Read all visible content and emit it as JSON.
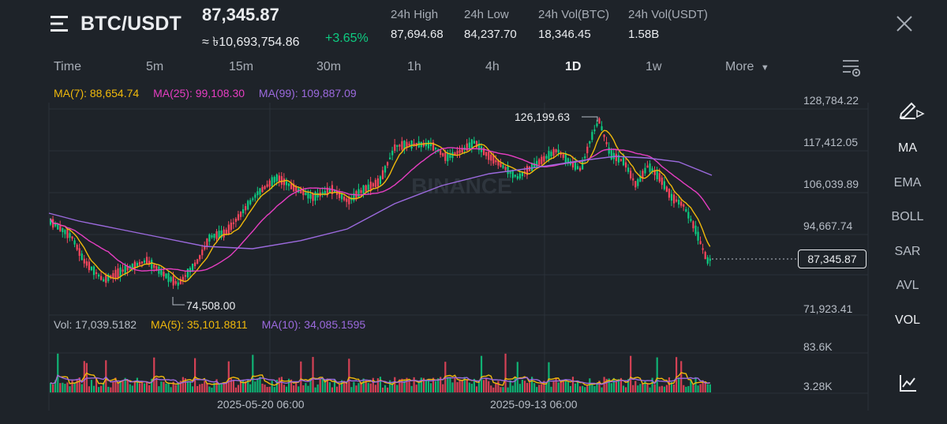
{
  "header": {
    "pair": "BTC/USDT",
    "last_price": "87,345.87",
    "local_price": "≈ ৳10,693,754.86",
    "change": "+3.65%",
    "stats": [
      {
        "label": "24h High",
        "value": "87,694.68"
      },
      {
        "label": "24h Low",
        "value": "84,237.70"
      },
      {
        "label": "24h Vol(BTC)",
        "value": "18,346.45"
      },
      {
        "label": "24h Vol(USDT)",
        "value": "1.58B"
      }
    ]
  },
  "tabs": [
    "Time",
    "5m",
    "15m",
    "30m",
    "1h",
    "4h",
    "1D",
    "1w",
    "More"
  ],
  "active_tab": "1D",
  "ma_legend": {
    "ma7": "MA(7): 88,654.74",
    "ma25": "MA(25): 99,108.30",
    "ma99": "MA(99): 109,887.09"
  },
  "vol_legend": {
    "vol": "Vol: 17,039.5182",
    "ma5": "MA(5): 35,101.8811",
    "ma10": "MA(10): 34,085.1595"
  },
  "price_axis": [
    "128,784.22",
    "117,412.05",
    "106,039.89",
    "94,667.74",
    "71,923.41"
  ],
  "volume_axis": [
    "83.6K",
    "3.28K"
  ],
  "current_price_tag": "87,345.87",
  "annotations": {
    "high": "126,199.63",
    "low": "74,508.00"
  },
  "x_axis": [
    "2025-05-20 06:00",
    "2025-09-13 06:00"
  ],
  "watermark": "BINANCE",
  "right_panel": [
    "MA",
    "EMA",
    "BOLL",
    "SAR",
    "AVL",
    "VOL"
  ],
  "colors": {
    "up": "#0ecb81",
    "down": "#f6465d",
    "ma7": "#f0b90b",
    "ma25": "#e63ec2",
    "ma99": "#9c6ade",
    "background": "#1e2329",
    "grid": "#2b3139"
  },
  "icons": [
    "menu-icon",
    "close-icon",
    "chart-settings-icon",
    "draw-tool-icon",
    "indicator-chart-icon"
  ]
}
